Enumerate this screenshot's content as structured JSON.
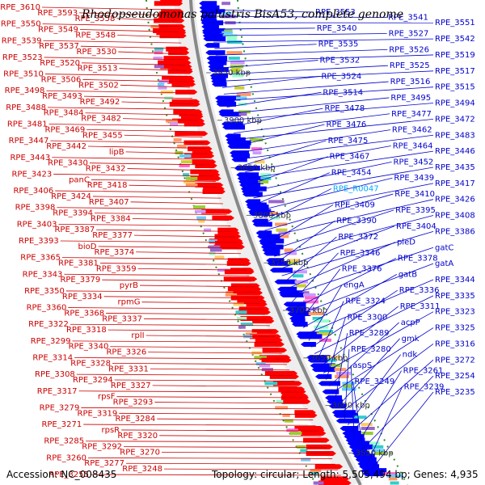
{
  "title": "Rhodopseudomonas palustris BisA53, complete genome",
  "footer": {
    "accession": "Accession: NC_008435",
    "summary": "Topology: circular; Length: 5,505,494 bp; Genes: 4,935"
  },
  "colors": {
    "left_label": "#cc0000",
    "right_label": "#0000cc",
    "highlight_label": "#00aaff",
    "forward_gene": "#ff0000",
    "reverse_gene": "#0000ff",
    "backbone": "#888888",
    "dots": "#2a8a2a"
  },
  "ruler_ticks": [
    "3950 kbp",
    "3900 kbp",
    "3850 kbp",
    "3800 kbp",
    "3750 kbp",
    "3700 kbp",
    "3650 kbp",
    "3600 kbp",
    "3550 kbp"
  ],
  "left_labels": [
    "RPE_3610",
    "RPE_3593",
    "RPE_3558",
    "RPE_3550",
    "RPE_3549",
    "RPE_3548",
    "RPE_3539",
    "RPE_3537",
    "RPE_3530",
    "RPE_3523",
    "RPE_3520",
    "RPE_3513",
    "RPE_3510",
    "RPE_3506",
    "RPE_3502",
    "RPE_3498",
    "RPE_3493",
    "RPE_3492",
    "RPE_3488",
    "RPE_3484",
    "RPE_3482",
    "RPE_3481",
    "RPE_3469",
    "RPE_3455",
    "RPE_3447",
    "RPE_3442",
    "lipB",
    "RPE_3443",
    "RPE_3430",
    "RPE_3432",
    "RPE_3423",
    "panC",
    "RPE_3418",
    "RPE_3406",
    "RPE_3424",
    "RPE_3407",
    "RPE_3398",
    "RPE_3394",
    "RPE_3384",
    "RPE_3403",
    "RPE_3387",
    "RPE_3377",
    "RPE_3393",
    "bioD",
    "RPE_3374",
    "RPE_3365",
    "RPE_3381",
    "RPE_3359",
    "RPE_3343",
    "RPE_3379",
    "pyrB",
    "RPE_3350",
    "RPE_3334",
    "rpmG",
    "RPE_3360",
    "RPE_3368",
    "RPE_3337",
    "RPE_3322",
    "RPE_3318",
    "rplI",
    "RPE_3299",
    "RPE_3340",
    "RPE_3326",
    "RPE_3314",
    "RPE_3328",
    "RPE_3331",
    "RPE_3308",
    "RPE_3294",
    "RPE_3327",
    "RPE_3317",
    "rpsF",
    "RPE_3293",
    "RPE_3279",
    "RPE_3319",
    "RPE_3284",
    "RPE_3271",
    "rpsR",
    "RPE_3320",
    "RPE_3285",
    "RPE_3292",
    "RPE_3270",
    "RPE_3260",
    "RPE_3277",
    "RPE_3248",
    "RPE_3255"
  ],
  "right_labels": [
    "RPE_3553",
    "RPE_3541",
    "RPE_3551",
    "RPE_3540",
    "RPE_3527",
    "RPE_3542",
    "RPE_3535",
    "RPE_3526",
    "RPE_3519",
    "RPE_3532",
    "RPE_3525",
    "RPE_3517",
    "RPE_3524",
    "RPE_3516",
    "RPE_3515",
    "RPE_3514",
    "RPE_3495",
    "RPE_3494",
    "RPE_3478",
    "RPE_3477",
    "RPE_3472",
    "RPE_3476",
    "RPE_3462",
    "RPE_3483",
    "RPE_3475",
    "RPE_3464",
    "RPE_3446",
    "RPE_3467",
    "RPE_3452",
    "RPE_3435",
    "RPE_3454",
    "RPE_3439",
    "RPE_3417",
    "RPE_R0047",
    "RPE_3410",
    "RPE_3426",
    "RPE_3409",
    "RPE_3395",
    "RPE_3408",
    "RPE_3390",
    "RPE_3404",
    "RPE_3386",
    "RPE_3372",
    "pleD",
    "gatC",
    "RPE_3346",
    "RPE_3378",
    "gatA",
    "RPE_3376",
    "gatB",
    "RPE_3344",
    "engA",
    "RPE_3336",
    "RPE_3335",
    "RPE_3324",
    "RPE_3311",
    "RPE_3323",
    "RPE_3300",
    "acpP",
    "RPE_3325",
    "RPE_3289",
    "gmk",
    "RPE_3316",
    "RPE_3280",
    "ndk",
    "RPE_3272",
    "aspS",
    "RPE_3261",
    "RPE_3254",
    "RPE_3249",
    "RPE_3239",
    "RPE_3235"
  ]
}
